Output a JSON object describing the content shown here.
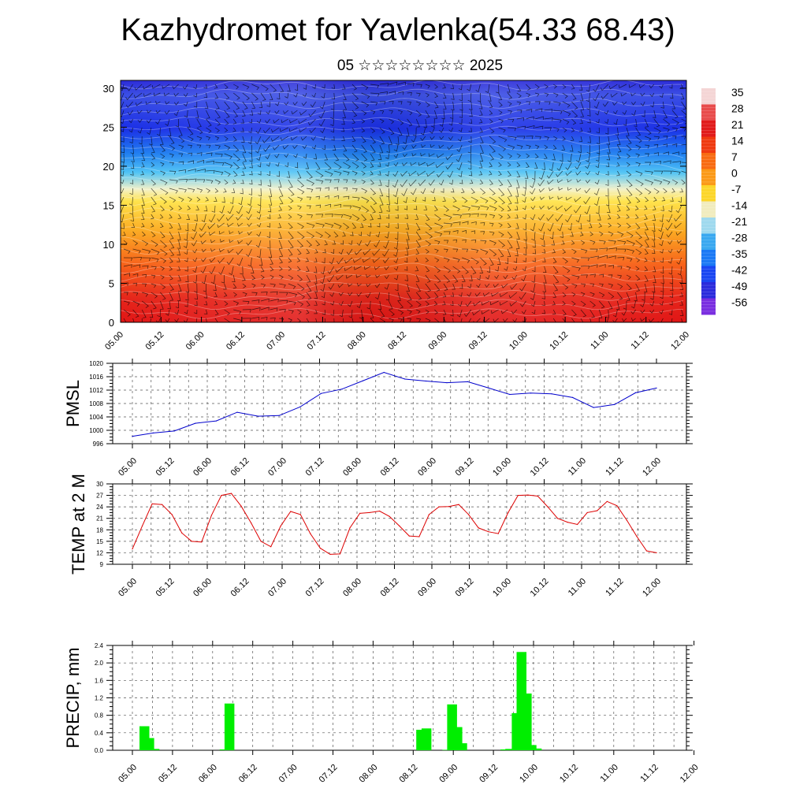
{
  "title": "Kazhydromet for Yavlenka(54.33 68.43)",
  "subtitle": "05 ☆☆☆☆☆☆☆☆ 2025",
  "chart_data": [
    {
      "type": "heatmap",
      "name": "cross-section",
      "x_ticks": [
        "05.00",
        "05.12",
        "06.00",
        "06.12",
        "07.00",
        "07.12",
        "08.00",
        "08.12",
        "09.00",
        "09.12",
        "10.00",
        "10.12",
        "11.00",
        "11.12",
        "12.00"
      ],
      "ylim": [
        0,
        31
      ],
      "y_ticks": [
        0,
        5,
        10,
        15,
        20,
        25,
        30
      ],
      "colorbar": {
        "labels": [
          "35",
          "28",
          "21",
          "14",
          "7",
          "0",
          "-7",
          "-14",
          "-21",
          "-28",
          "-35",
          "-42",
          "-49",
          "-56"
        ],
        "colors": [
          "#f4d5d5",
          "#e84c4c",
          "#e11b1b",
          "#ef3a10",
          "#f86b12",
          "#fb9a18",
          "#fcd62a",
          "#f1ecbe",
          "#9fd9ee",
          "#3aa8f0",
          "#1b79f5",
          "#1a46f2",
          "#2b2adc",
          "#7a2ee0"
        ]
      }
    },
    {
      "type": "line",
      "ylabel": "PMSL",
      "ylim": [
        996,
        1020
      ],
      "y_ticks": [
        996,
        1000,
        1004,
        1008,
        1012,
        1016,
        1020
      ],
      "x_ticks": [
        "05.00",
        "05.12",
        "06.00",
        "06.12",
        "07.00",
        "07.12",
        "08.00",
        "08.12",
        "09.00",
        "09.12",
        "10.00",
        "10.12",
        "11.00",
        "11.12",
        "12.00"
      ],
      "color": "#0000cc",
      "series": [
        {
          "values": [
            998.2,
            999.2,
            999.8,
            1002.1,
            1002.8,
            1005.4,
            1004.2,
            1004.4,
            1007.0,
            1011.0,
            1012.3,
            1014.8,
            1017.3,
            1015.3,
            1014.7,
            1014.2,
            1014.5,
            1012.6,
            1010.7,
            1011.1,
            1010.9,
            1009.8,
            1006.8,
            1007.7,
            1011.2,
            1012.6
          ]
        }
      ]
    },
    {
      "type": "line",
      "ylabel": "TEMP at 2 M",
      "ylim": [
        9,
        30
      ],
      "y_ticks": [
        9,
        12,
        15,
        18,
        21,
        24,
        27,
        30
      ],
      "x_ticks": [
        "05.00",
        "05.12",
        "06.00",
        "06.12",
        "07.00",
        "07.12",
        "08.00",
        "08.12",
        "09.00",
        "09.12",
        "10.00",
        "10.12",
        "11.00",
        "11.12",
        "12.00"
      ],
      "color": "#dd0000",
      "series": [
        {
          "values": [
            13.0,
            19.0,
            24.8,
            24.6,
            22.0,
            17.2,
            15.0,
            14.8,
            21.8,
            27.0,
            27.5,
            24.2,
            19.8,
            15.0,
            13.6,
            19.0,
            22.8,
            22.0,
            17.0,
            13.2,
            11.6,
            11.7,
            18.5,
            22.3,
            22.5,
            22.9,
            21.5,
            19.0,
            16.4,
            16.2,
            22.0,
            24.0,
            24.1,
            24.6,
            22.0,
            18.5,
            17.5,
            17.0,
            22.5,
            27.0,
            27.1,
            26.8,
            24.0,
            21.0,
            20.0,
            19.4,
            22.5,
            23.0,
            25.4,
            24.3,
            20.5,
            16.3,
            12.5,
            12.0
          ]
        }
      ]
    },
    {
      "type": "bar",
      "ylabel": "PRECIP, mm",
      "ylim": [
        0,
        2.4
      ],
      "y_ticks": [
        "0.0",
        "0.4",
        "0.8",
        "1.2",
        "1.6",
        "2.0",
        "2.4"
      ],
      "x_ticks": [
        "05.00",
        "05.12",
        "06.00",
        "06.12",
        "07.00",
        "07.12",
        "08.00",
        "08.12",
        "09.00",
        "09.12",
        "10.00",
        "10.12",
        "11.00",
        "11.12",
        "12.00"
      ],
      "color": "#00ee00",
      "bars": [
        {
          "t": 0.3,
          "value": 0.55
        },
        {
          "t": 0.42,
          "value": 0.28
        },
        {
          "t": 0.55,
          "value": 0.03
        },
        {
          "t": 2.3,
          "value": 0.02
        },
        {
          "t": 2.42,
          "value": 1.07
        },
        {
          "t": 7.2,
          "value": 0.47
        },
        {
          "t": 7.33,
          "value": 0.5
        },
        {
          "t": 7.85,
          "value": 0.01
        },
        {
          "t": 7.97,
          "value": 1.05
        },
        {
          "t": 8.1,
          "value": 0.53
        },
        {
          "t": 8.22,
          "value": 0.16
        },
        {
          "t": 9.3,
          "value": 0.02
        },
        {
          "t": 9.42,
          "value": 0.03
        },
        {
          "t": 9.58,
          "value": 0.85
        },
        {
          "t": 9.7,
          "value": 2.25
        },
        {
          "t": 9.83,
          "value": 1.3
        },
        {
          "t": 9.95,
          "value": 0.12
        },
        {
          "t": 10.08,
          "value": 0.04
        }
      ]
    }
  ]
}
